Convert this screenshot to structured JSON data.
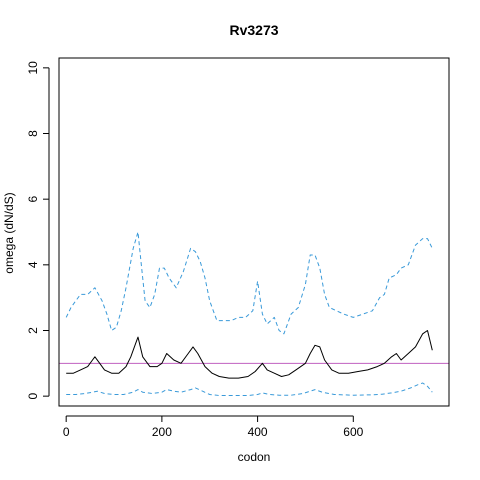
{
  "chart_data": {
    "type": "line",
    "title": "Rv3273",
    "xlabel": "codon",
    "ylabel": "omega (dN/dS)",
    "xlim": [
      -15,
      800
    ],
    "ylim": [
      -0.3,
      10.3
    ],
    "x_ticks": [
      0,
      200,
      400,
      600
    ],
    "y_ticks": [
      0,
      2,
      4,
      6,
      8,
      10
    ],
    "hline": {
      "y": 1,
      "color": "#c060c0"
    },
    "series": [
      {
        "role": "upper",
        "color": "#3a9ad9",
        "dash": true,
        "x": [
          0,
          10,
          20,
          30,
          45,
          60,
          75,
          85,
          95,
          105,
          115,
          125,
          140,
          150,
          155,
          165,
          175,
          185,
          195,
          205,
          215,
          230,
          245,
          260,
          270,
          280,
          290,
          300,
          315,
          330,
          345,
          360,
          375,
          390,
          400,
          410,
          420,
          435,
          445,
          455,
          470,
          485,
          500,
          510,
          520,
          530,
          540,
          550,
          565,
          580,
          600,
          620,
          640,
          655,
          665,
          675,
          690,
          700,
          715,
          730,
          745,
          755,
          765
        ],
        "y": [
          2.4,
          2.7,
          2.9,
          3.1,
          3.1,
          3.3,
          2.9,
          2.5,
          2.0,
          2.1,
          2.6,
          3.3,
          4.5,
          5.0,
          4.3,
          2.9,
          2.7,
          3.1,
          3.9,
          3.9,
          3.6,
          3.3,
          3.8,
          4.5,
          4.4,
          4.1,
          3.6,
          2.9,
          2.3,
          2.3,
          2.3,
          2.4,
          2.4,
          2.6,
          3.5,
          2.5,
          2.2,
          2.4,
          2.0,
          1.9,
          2.5,
          2.7,
          3.4,
          4.3,
          4.3,
          3.9,
          3.1,
          2.7,
          2.6,
          2.5,
          2.4,
          2.5,
          2.6,
          3.0,
          3.1,
          3.6,
          3.7,
          3.9,
          4.0,
          4.6,
          4.8,
          4.8,
          4.5
        ]
      },
      {
        "role": "mean",
        "color": "#000000",
        "dash": false,
        "x": [
          0,
          15,
          30,
          45,
          55,
          60,
          70,
          80,
          95,
          110,
          125,
          135,
          145,
          150,
          160,
          175,
          190,
          200,
          210,
          225,
          240,
          255,
          265,
          275,
          290,
          305,
          320,
          340,
          360,
          380,
          395,
          410,
          420,
          435,
          450,
          465,
          480,
          500,
          510,
          520,
          530,
          540,
          555,
          570,
          590,
          610,
          630,
          650,
          665,
          680,
          690,
          700,
          715,
          730,
          745,
          755,
          765
        ],
        "y": [
          0.7,
          0.7,
          0.8,
          0.9,
          1.1,
          1.2,
          1.0,
          0.8,
          0.7,
          0.7,
          0.9,
          1.2,
          1.6,
          1.8,
          1.2,
          0.9,
          0.9,
          1.0,
          1.3,
          1.1,
          1.0,
          1.3,
          1.5,
          1.3,
          0.9,
          0.7,
          0.6,
          0.55,
          0.55,
          0.6,
          0.75,
          1.0,
          0.8,
          0.7,
          0.6,
          0.65,
          0.8,
          1.0,
          1.3,
          1.55,
          1.5,
          1.1,
          0.8,
          0.7,
          0.7,
          0.75,
          0.8,
          0.9,
          1.0,
          1.2,
          1.3,
          1.1,
          1.3,
          1.5,
          1.9,
          2.0,
          1.4
        ]
      },
      {
        "role": "lower",
        "color": "#3a9ad9",
        "dash": true,
        "x": [
          0,
          20,
          40,
          55,
          65,
          80,
          100,
          120,
          140,
          150,
          160,
          180,
          200,
          210,
          225,
          240,
          260,
          270,
          285,
          300,
          320,
          350,
          380,
          400,
          410,
          425,
          445,
          470,
          495,
          510,
          520,
          535,
          560,
          600,
          640,
          660,
          680,
          700,
          720,
          735,
          745,
          755,
          765
        ],
        "y": [
          0.05,
          0.05,
          0.08,
          0.12,
          0.15,
          0.08,
          0.05,
          0.05,
          0.12,
          0.2,
          0.12,
          0.08,
          0.12,
          0.2,
          0.15,
          0.12,
          0.2,
          0.25,
          0.15,
          0.05,
          0.02,
          0.02,
          0.02,
          0.05,
          0.1,
          0.05,
          0.03,
          0.03,
          0.08,
          0.15,
          0.2,
          0.12,
          0.05,
          0.03,
          0.04,
          0.06,
          0.1,
          0.15,
          0.25,
          0.35,
          0.4,
          0.3,
          0.12
        ]
      }
    ]
  }
}
